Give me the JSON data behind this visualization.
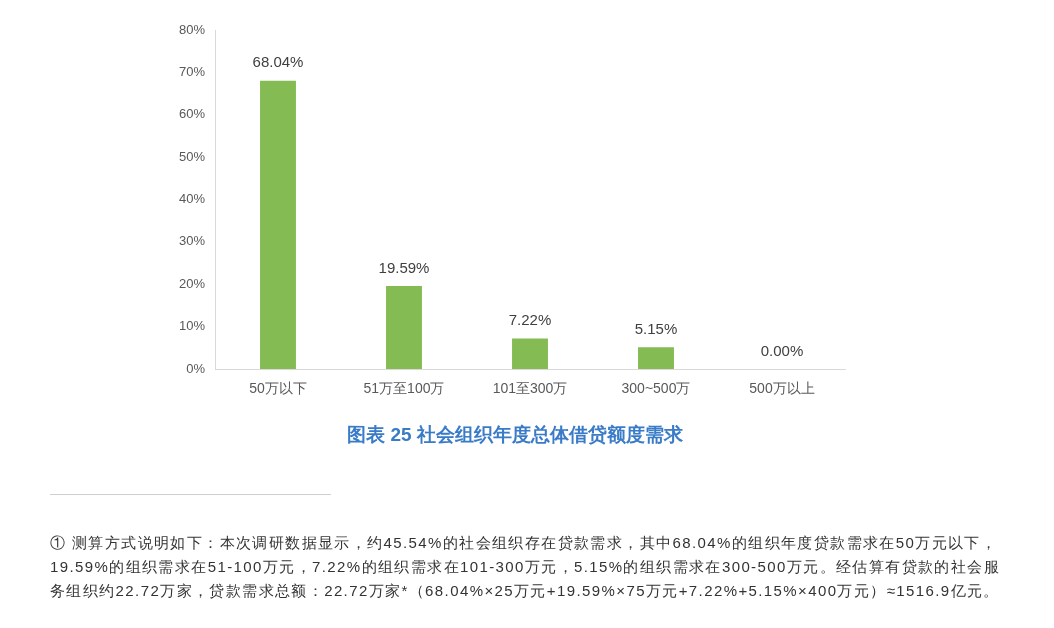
{
  "chart_data": {
    "type": "bar",
    "title": "图表 25 社会组织年度总体借贷额度需求",
    "categories": [
      "50万以下",
      "51万至100万",
      "101至300万",
      "300~500万",
      "500万以上"
    ],
    "values": [
      68.04,
      19.59,
      7.22,
      5.15,
      0
    ],
    "value_labels": [
      "68.04%",
      "19.59%",
      "7.22%",
      "5.15%",
      "0.00%"
    ],
    "color": "#84bb52",
    "ylim": [
      0,
      80
    ],
    "yticks": [
      {
        "value": 0,
        "label": "0%"
      },
      {
        "value": 10,
        "label": "10%"
      },
      {
        "value": 20,
        "label": "20%"
      },
      {
        "value": 30,
        "label": "30%"
      },
      {
        "value": 40,
        "label": "40%"
      },
      {
        "value": 50,
        "label": "50%"
      },
      {
        "value": 60,
        "label": "60%"
      },
      {
        "value": 70,
        "label": "70%"
      },
      {
        "value": 80,
        "label": "80%"
      }
    ],
    "annotations": [
      "① 测算方式说明如下：本次调研数据显示，约45.54%的社会组织存在贷款需求，其中68.04%的组织年度贷款需求在50万元以下，19.59%的组织需求在51-100万元，7.22%的组织需求在101-300万元，5.15%的组织需求在300-500万元。经估算有贷款的社会服务组织约22.72万家，贷款需求总额：22.72万家*（68.04%×25万元+19.59%×75万元+7.22%+5.15%×400万元）≈1516.9亿元。"
    ]
  }
}
